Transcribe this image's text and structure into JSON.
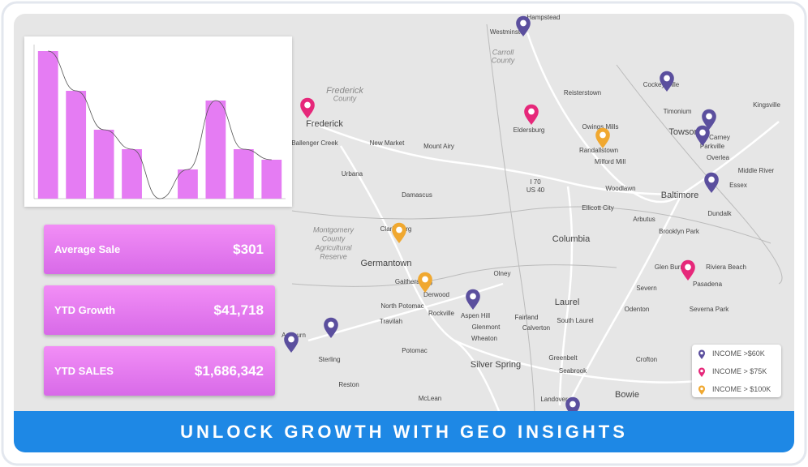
{
  "chart_data": {
    "type": "bar",
    "values": [
      182,
      133,
      85,
      61,
      0,
      36,
      121,
      61,
      48
    ],
    "color": "#e57cf3",
    "line_color": "#555555",
    "ylim": [
      0,
      190
    ]
  },
  "kpis": [
    {
      "label": "Average Sale",
      "value": "$301"
    },
    {
      "label": "YTD Growth",
      "value": "$41,718"
    },
    {
      "label": "YTD SALES",
      "value": "$1,686,342"
    }
  ],
  "legend": [
    "INCOME >$60K",
    "INCOME > $75K",
    "INCOME > $100K"
  ],
  "banner": "UNLOCK GROWTH WITH GEO INSIGHTS",
  "map": {
    "labels": [
      "Frederick",
      "Westminster",
      "Hampstead",
      "Eldersburg",
      "Reisterstown",
      "Owings Mills",
      "Randallstown",
      "Milford Mill",
      "Cockeysville",
      "Timonium",
      "Towson",
      "Carney",
      "Parkville",
      "Overlea",
      "Kingsville",
      "Middle River",
      "Essex",
      "Baltimore",
      "Dundalk",
      "Woodlawn",
      "Ellicott City",
      "Arbutus",
      "Columbia",
      "Brooklyn Park",
      "Glen Burnie",
      "Riviera Beach",
      "Pasadena",
      "Severn",
      "Odenton",
      "Severna Park",
      "Laurel",
      "South Laurel",
      "Fairland",
      "Calverton",
      "Olney",
      "Aspen Hill",
      "Glenmont",
      "Wheaton",
      "Silver Spring",
      "Greenbelt",
      "Seabrook",
      "Crofton",
      "Bowie",
      "Landover",
      "Mount Airy",
      "New Market",
      "Urbana",
      "Damascus",
      "Clarksburg",
      "Germantown",
      "Gaithersburg",
      "Derwood",
      "Rockville",
      "North Potomac",
      "Travilah",
      "Potomac",
      "McLean",
      "Ashburn",
      "Sterling",
      "Reston",
      "Ballenger Creek",
      "Montgomery",
      "County",
      "Agricultural",
      "Reserve",
      "Carroll",
      "County",
      "Frederick",
      "County",
      "I 70",
      "US 40"
    ]
  }
}
